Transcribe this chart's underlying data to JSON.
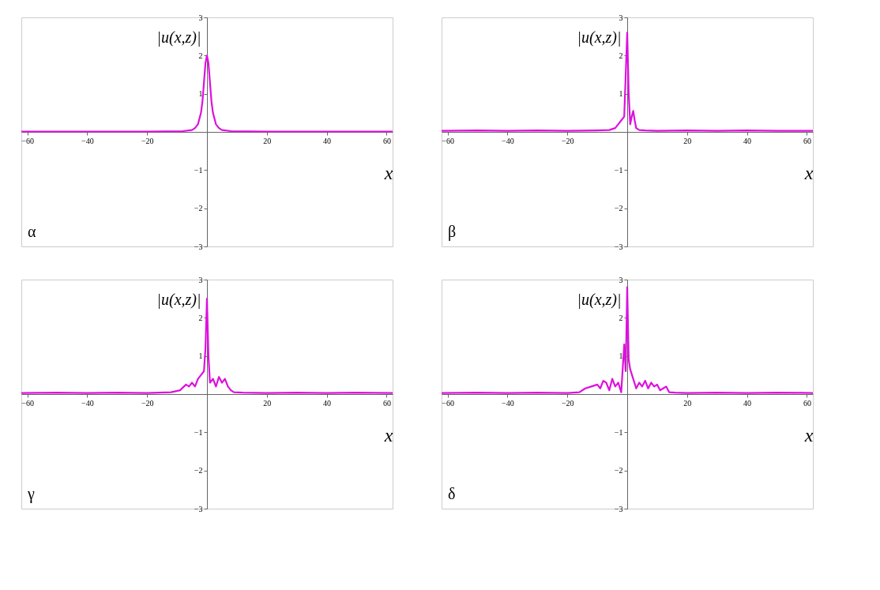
{
  "chart_data": [
    {
      "type": "line",
      "xlabel": "x",
      "ylabel": "|u(x,z)|",
      "annotations": [
        "α"
      ],
      "xlim": [
        -62,
        62
      ],
      "ylim": [
        -3,
        3
      ],
      "xticks": [
        -60,
        -40,
        -20,
        20,
        40,
        60
      ],
      "yticks": [
        -3,
        -2,
        -1,
        1,
        2,
        3
      ],
      "grid": false,
      "series": [
        {
          "color": "#dd11dd",
          "x": [
            -62,
            -40,
            -20,
            -8,
            -5,
            -4,
            -3,
            -2,
            -1.5,
            -1,
            -0.5,
            0,
            0.5,
            1,
            1.5,
            2,
            3,
            4,
            5,
            8,
            20,
            40,
            62
          ],
          "values": [
            0.01,
            0.01,
            0.01,
            0.02,
            0.05,
            0.1,
            0.2,
            0.5,
            0.8,
            1.3,
            1.8,
            2,
            1.8,
            1.3,
            0.8,
            0.5,
            0.2,
            0.1,
            0.05,
            0.02,
            0.01,
            0.01,
            0.01
          ]
        }
      ]
    },
    {
      "type": "line",
      "xlabel": "x",
      "ylabel": "|u(x,z)|",
      "annotations": [
        "β"
      ],
      "xlim": [
        -62,
        62
      ],
      "ylim": [
        -3,
        3
      ],
      "xticks": [
        -60,
        -40,
        -20,
        20,
        40,
        60
      ],
      "yticks": [
        -3,
        -2,
        -1,
        1,
        2,
        3
      ],
      "grid": false,
      "series": [
        {
          "color": "#dd11dd",
          "x": [
            -62,
            -50,
            -40,
            -30,
            -20,
            -10,
            -6,
            -4,
            -3,
            -2,
            -1,
            -0.5,
            0,
            0.5,
            1,
            1.5,
            2,
            2.5,
            3,
            4,
            6,
            10,
            20,
            30,
            40,
            50,
            62
          ],
          "values": [
            0.03,
            0.04,
            0.03,
            0.04,
            0.03,
            0.04,
            0.05,
            0.1,
            0.2,
            0.3,
            0.4,
            1.5,
            2.6,
            1,
            0.2,
            0.4,
            0.55,
            0.3,
            0.1,
            0.05,
            0.04,
            0.03,
            0.04,
            0.03,
            0.04,
            0.03,
            0.03
          ]
        }
      ]
    },
    {
      "type": "line",
      "xlabel": "x",
      "ylabel": "|u(x,z)|",
      "annotations": [
        "γ"
      ],
      "xlim": [
        -62,
        62
      ],
      "ylim": [
        -3,
        3
      ],
      "xticks": [
        -60,
        -40,
        -20,
        20,
        40,
        60
      ],
      "yticks": [
        -3,
        -2,
        -1,
        1,
        2,
        3
      ],
      "grid": false,
      "series": [
        {
          "color": "#dd11dd",
          "x": [
            -62,
            -50,
            -40,
            -30,
            -20,
            -12,
            -9,
            -7,
            -6,
            -5,
            -4,
            -3,
            -2,
            -1,
            -0.5,
            0,
            0.5,
            1,
            2,
            3,
            4,
            5,
            6,
            7,
            8,
            9,
            12,
            20,
            30,
            40,
            50,
            62
          ],
          "values": [
            0.03,
            0.04,
            0.03,
            0.04,
            0.03,
            0.05,
            0.1,
            0.25,
            0.2,
            0.3,
            0.2,
            0.4,
            0.5,
            0.6,
            1.2,
            2.5,
            1,
            0.3,
            0.4,
            0.2,
            0.45,
            0.3,
            0.4,
            0.2,
            0.1,
            0.05,
            0.04,
            0.03,
            0.04,
            0.03,
            0.04,
            0.03
          ]
        }
      ]
    },
    {
      "type": "line",
      "xlabel": "x",
      "ylabel": "|u(x,z)|",
      "annotations": [
        "δ"
      ],
      "xlim": [
        -62,
        62
      ],
      "ylim": [
        -3,
        3
      ],
      "xticks": [
        -60,
        -40,
        -20,
        20,
        40,
        60
      ],
      "yticks": [
        -3,
        -2,
        -1,
        1,
        2,
        3
      ],
      "grid": false,
      "series": [
        {
          "color": "#dd11dd",
          "x": [
            -62,
            -50,
            -40,
            -30,
            -20,
            -16,
            -14,
            -12,
            -10,
            -9,
            -8,
            -7,
            -6,
            -5,
            -4,
            -3,
            -2,
            -1,
            -0.5,
            0,
            0.5,
            1,
            2,
            3,
            4,
            5,
            6,
            7,
            8,
            9,
            10,
            11,
            12,
            13,
            14,
            16,
            20,
            30,
            40,
            50,
            62
          ],
          "values": [
            0.03,
            0.04,
            0.03,
            0.04,
            0.03,
            0.05,
            0.15,
            0.2,
            0.25,
            0.15,
            0.35,
            0.3,
            0.1,
            0.4,
            0.2,
            0.3,
            0.05,
            1.3,
            0.6,
            2.8,
            0.9,
            0.65,
            0.4,
            0.15,
            0.3,
            0.2,
            0.35,
            0.15,
            0.3,
            0.2,
            0.25,
            0.1,
            0.15,
            0.2,
            0.05,
            0.04,
            0.03,
            0.04,
            0.03,
            0.04,
            0.03
          ]
        }
      ]
    }
  ]
}
